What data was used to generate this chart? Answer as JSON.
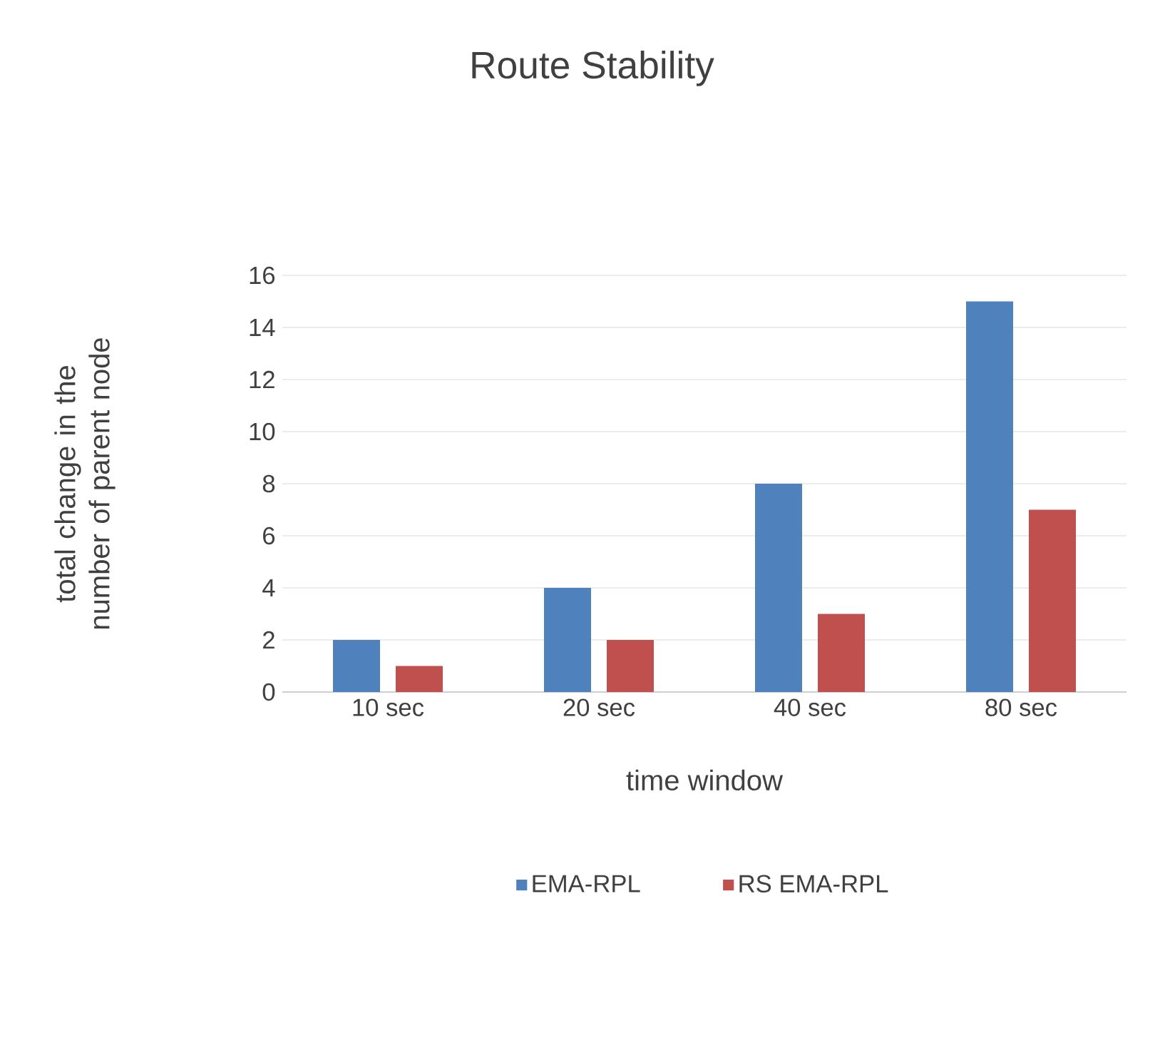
{
  "chart_data": {
    "type": "bar",
    "title": "Route Stability",
    "xlabel": "time window",
    "ylabel": "total change in the number of parent node",
    "categories": [
      "10 sec",
      "20 sec",
      "40 sec",
      "80 sec"
    ],
    "series": [
      {
        "name": "EMA-RPL",
        "color": "#4f81bd",
        "values": [
          2,
          4,
          8,
          15
        ]
      },
      {
        "name": "RS EMA-RPL",
        "color": "#c0504d",
        "values": [
          1,
          2,
          3,
          7
        ]
      }
    ],
    "ylim": [
      0,
      16
    ],
    "yticks": [
      0,
      2,
      4,
      6,
      8,
      10,
      12,
      14,
      16
    ],
    "grid": "y",
    "legend": "bottom"
  }
}
